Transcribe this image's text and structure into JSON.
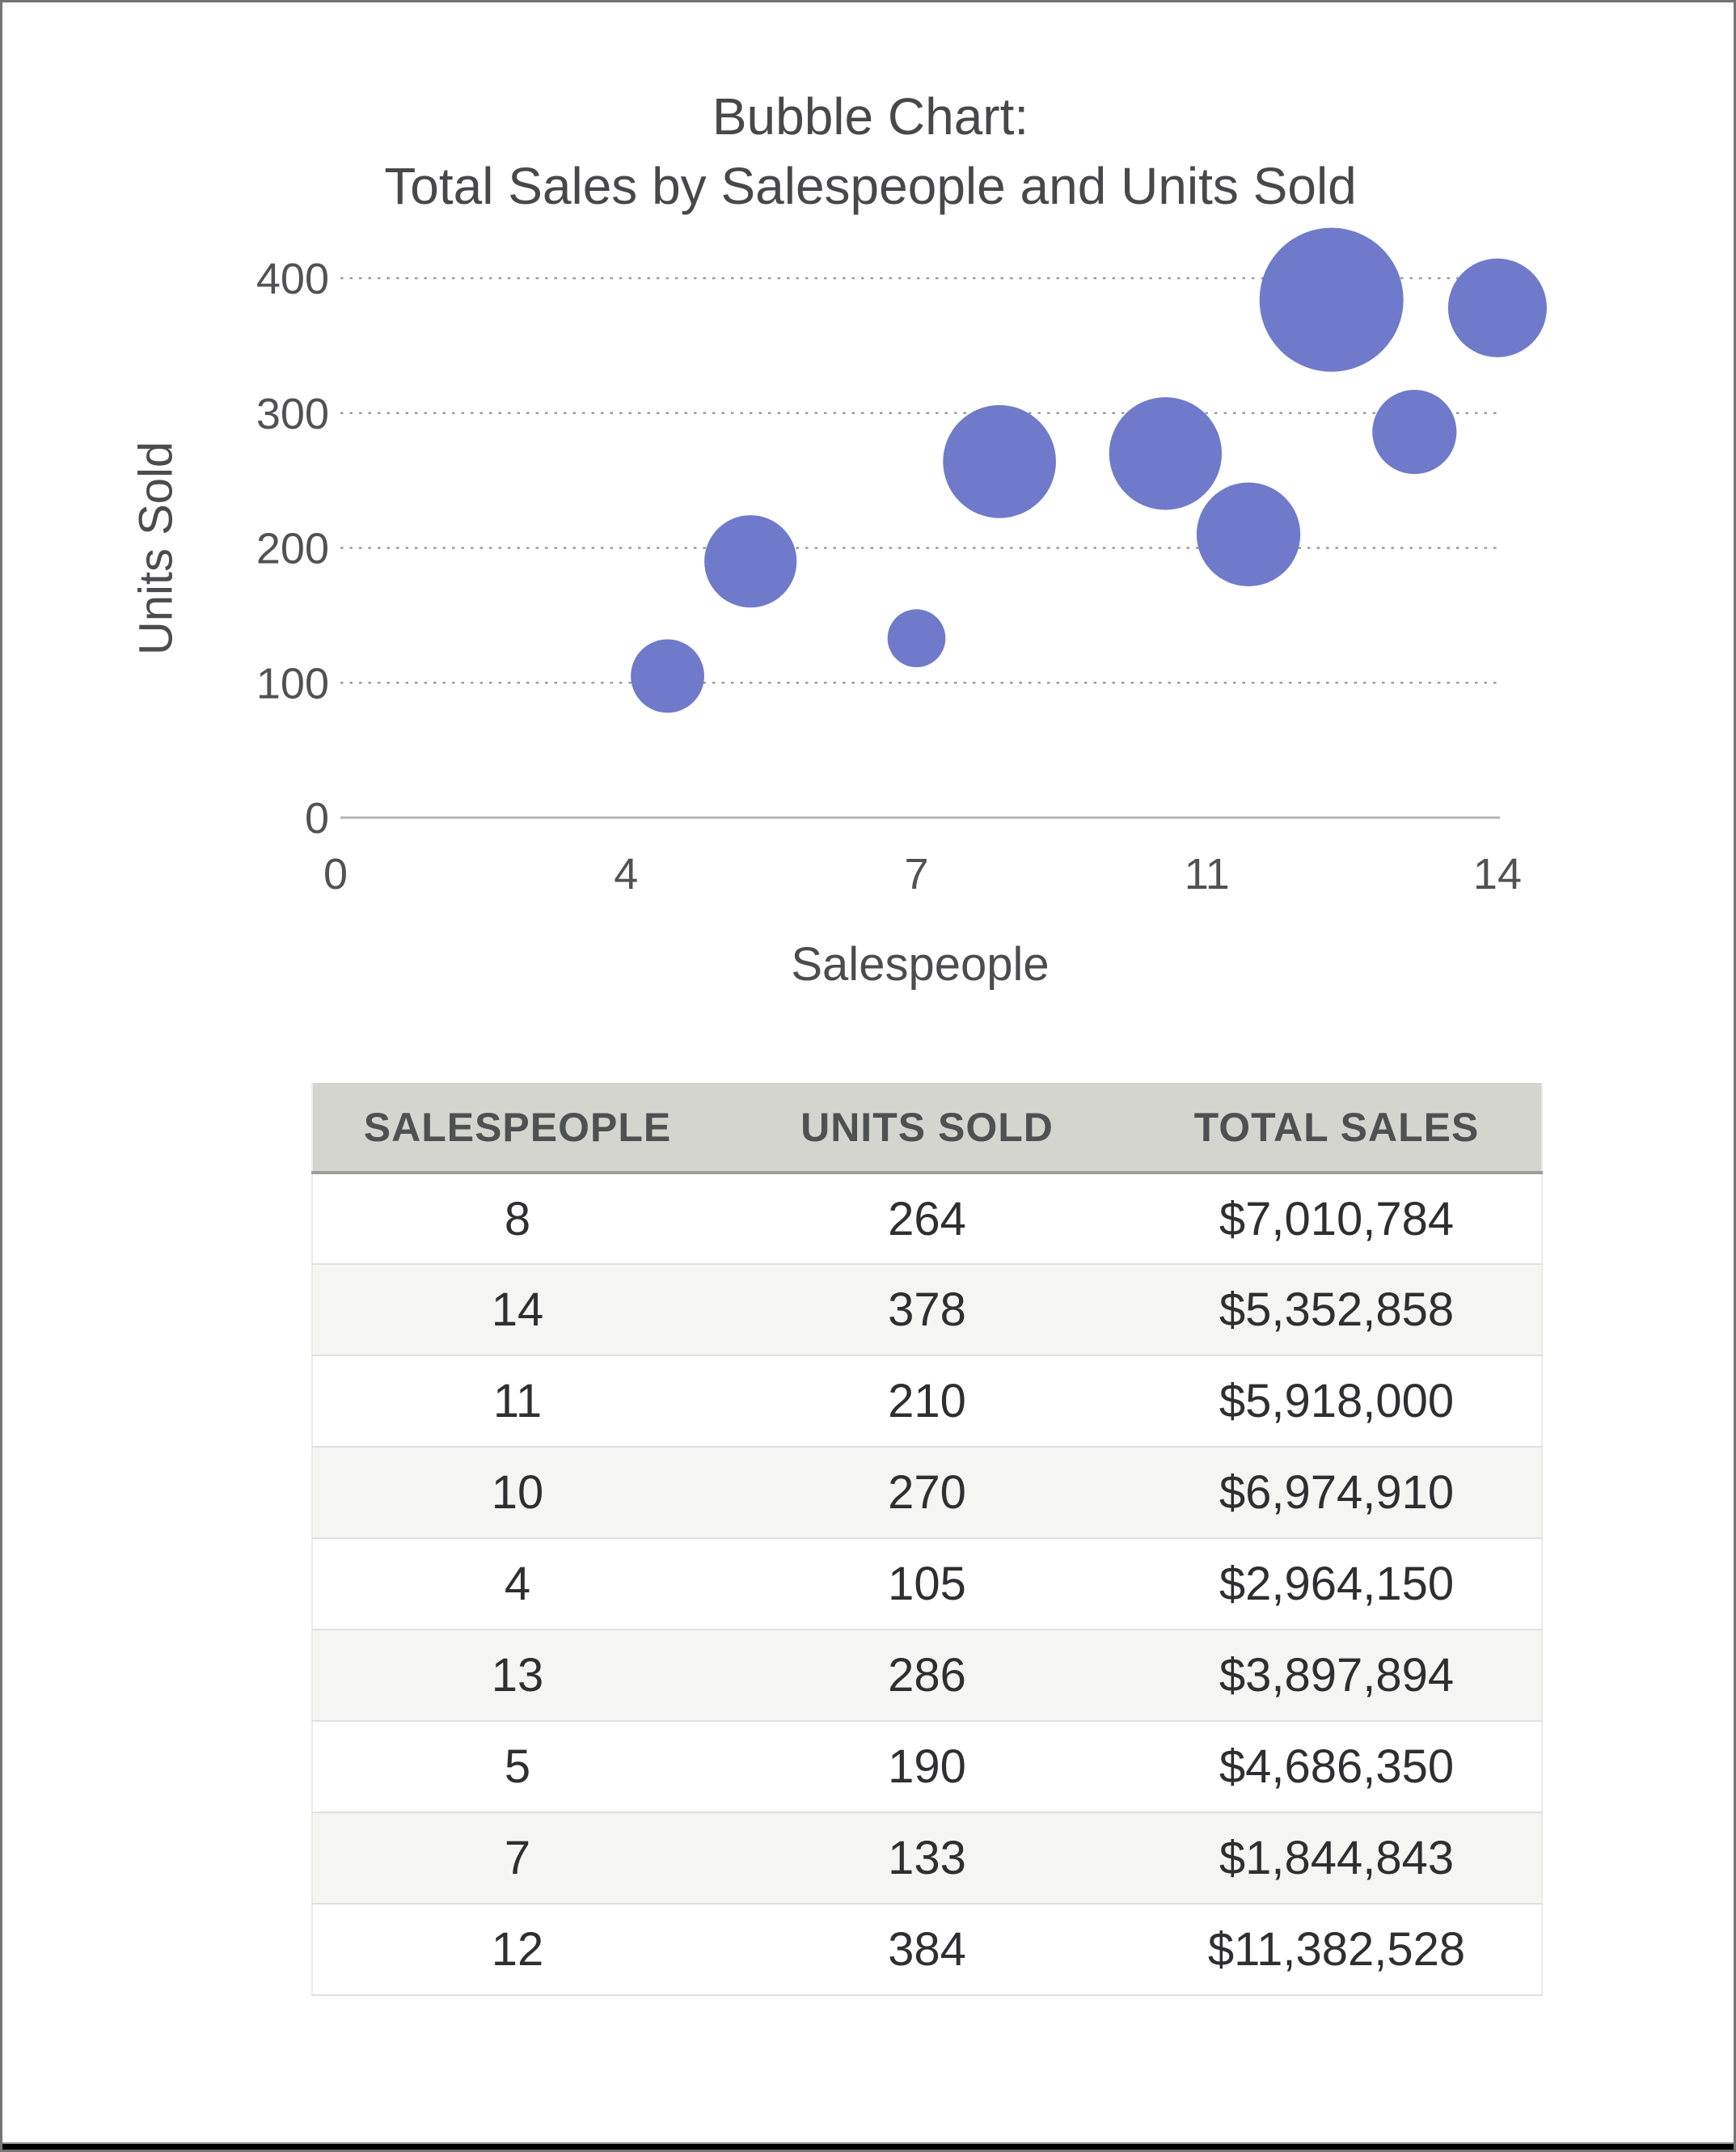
{
  "window": {
    "background": "#ffffff",
    "frame_border_color": "#757575",
    "bottom_bar_color": "#000000"
  },
  "chart_data": {
    "type": "bubble",
    "title_lines": [
      "Bubble Chart:",
      "Total Sales by Salespeople and Units Sold"
    ],
    "xlabel": "Salespeople",
    "ylabel": "Units Sold",
    "xlim": [
      0,
      14
    ],
    "ylim": [
      0,
      440
    ],
    "x_tick_positions": [
      0,
      3.5,
      7,
      10.5,
      14
    ],
    "x_tick_labels": [
      "0",
      "4",
      "7",
      "11",
      "14"
    ],
    "y_tick_positions": [
      0,
      100,
      200,
      300,
      400
    ],
    "y_tick_labels": [
      "0",
      "100",
      "200",
      "300",
      "400"
    ],
    "grid": "horizontal dotted gridlines at 100,200,300,400; solid baseline at 0",
    "legend": "none",
    "bubble_color": "#707ACA",
    "size_encoding": "bubble area proportional to total_sales",
    "points": [
      {
        "salespeople": 8,
        "units_sold": 264,
        "total_sales": 7010784
      },
      {
        "salespeople": 14,
        "units_sold": 378,
        "total_sales": 5352858
      },
      {
        "salespeople": 11,
        "units_sold": 210,
        "total_sales": 5918000
      },
      {
        "salespeople": 10,
        "units_sold": 270,
        "total_sales": 6974910
      },
      {
        "salespeople": 4,
        "units_sold": 105,
        "total_sales": 2964150
      },
      {
        "salespeople": 13,
        "units_sold": 286,
        "total_sales": 3897894
      },
      {
        "salespeople": 5,
        "units_sold": 190,
        "total_sales": 4686350
      },
      {
        "salespeople": 7,
        "units_sold": 133,
        "total_sales": 1844843
      },
      {
        "salespeople": 12,
        "units_sold": 384,
        "total_sales": 11382528
      }
    ]
  },
  "table": {
    "headers": [
      "SALESPEOPLE",
      "UNITS SOLD",
      "TOTAL SALES"
    ],
    "rows": [
      [
        "8",
        "264",
        "$7,010,784"
      ],
      [
        "14",
        "378",
        "$5,352,858"
      ],
      [
        "11",
        "210",
        "$5,918,000"
      ],
      [
        "10",
        "270",
        "$6,974,910"
      ],
      [
        "4",
        "105",
        "$2,964,150"
      ],
      [
        "13",
        "286",
        "$3,897,894"
      ],
      [
        "5",
        "190",
        "$4,686,350"
      ],
      [
        "7",
        "133",
        "$1,844,843"
      ],
      [
        "12",
        "384",
        "$11,382,528"
      ]
    ],
    "header_bg": "#D5D5D0",
    "row_alt_bg": "#F5F5F3",
    "text_color": "#2f2f31"
  }
}
